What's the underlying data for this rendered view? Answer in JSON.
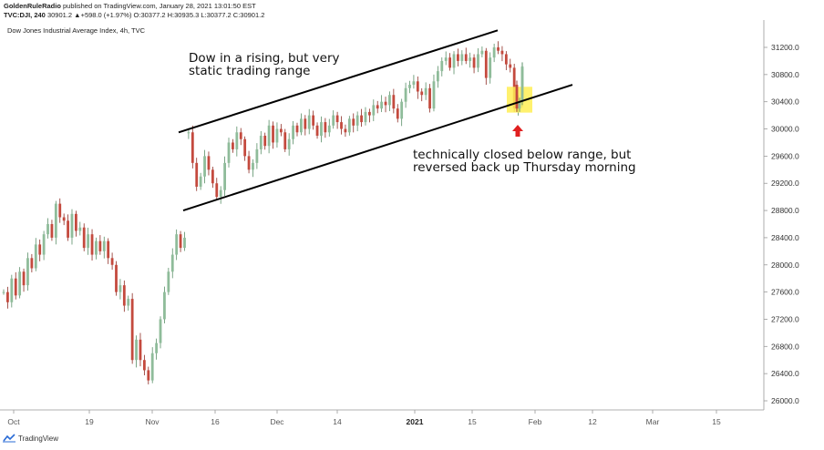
{
  "header": {
    "publisher": "GoldenRuleRadio",
    "published_text": "published on TradingView.com, January 28, 2021 13:01:50 EST",
    "symbol": "TVC:DJI, 240",
    "quote": "30901.2  ▲+598.0 (+1.97%)  O:30377.2  H:30935.3  L:30377.2  C:30901.2"
  },
  "instrument_title": "Dow Jones Industrial Average Index, 4h, TVC",
  "footer": {
    "brand": "TradingView"
  },
  "colors": {
    "up": "#8fbc9a",
    "down": "#c44a3e",
    "highlight": "#ffee55",
    "arrow": "#e02020",
    "line": "#000000"
  },
  "chart_data": {
    "type": "candlestick",
    "title": "Dow Jones Industrial Average Index, 4h, TVC",
    "ylim": [
      25800,
      31500
    ],
    "y_ticks": [
      "31200.0",
      "30800.0",
      "30400.0",
      "30000.0",
      "29600.0",
      "29200.0",
      "28800.0",
      "28400.0",
      "28000.0",
      "27600.0",
      "27200.0",
      "26800.0",
      "26400.0",
      "26000.0"
    ],
    "x_ticks": [
      {
        "label": "Oct",
        "bold": false
      },
      {
        "label": "19",
        "bold": false
      },
      {
        "label": "Nov",
        "bold": false
      },
      {
        "label": "16",
        "bold": false
      },
      {
        "label": "Dec",
        "bold": false
      },
      {
        "label": "14",
        "bold": false
      },
      {
        "label": "2021",
        "bold": true
      },
      {
        "label": "15",
        "bold": false
      },
      {
        "label": "Feb",
        "bold": false
      },
      {
        "label": "12",
        "bold": false
      },
      {
        "label": "Mar",
        "bold": false
      },
      {
        "label": "15",
        "bold": false
      }
    ],
    "channel": {
      "upper": [
        [
          29950,
          31450
        ]
      ],
      "lower": [
        [
          28800,
          30650
        ]
      ]
    },
    "annotations": [
      {
        "text": "Dow in a rising, but very"
      },
      {
        "text": "static trading range"
      },
      {
        "text": "technically closed below range, but"
      },
      {
        "text": "reversed back up Thursday morning"
      }
    ],
    "grid": false,
    "legend": "none"
  }
}
